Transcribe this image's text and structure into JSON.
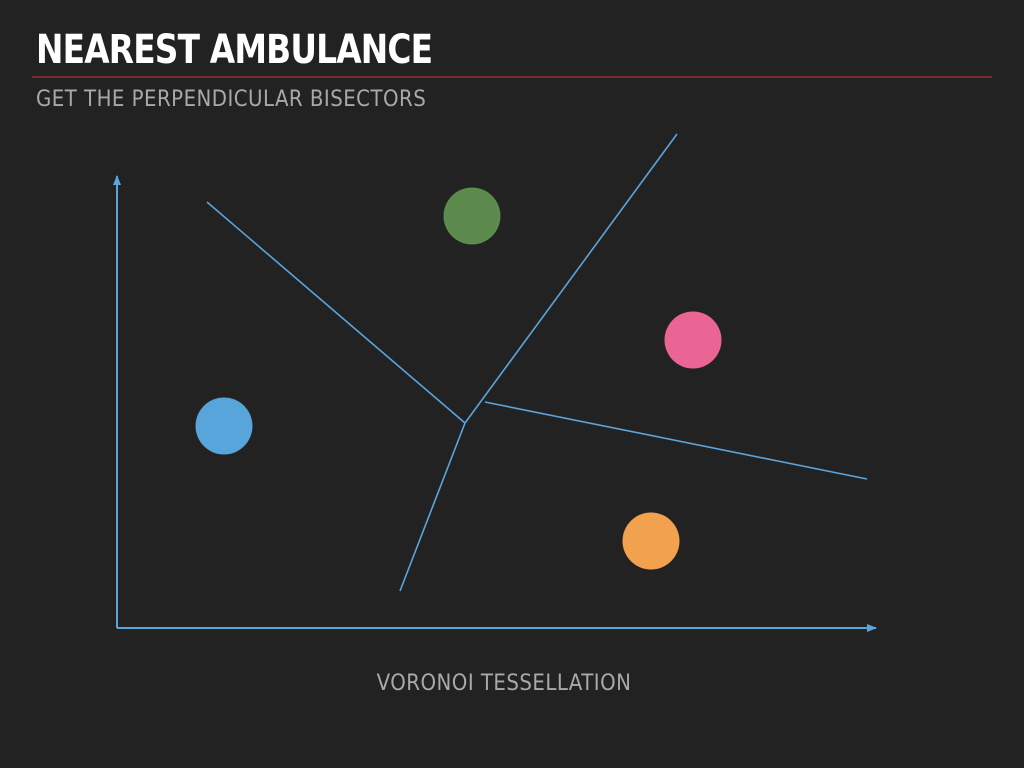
{
  "slide": {
    "title": "NEAREST AMBULANCE",
    "subtitle": "GET THE PERPENDICULAR BISECTORS",
    "caption": "VORONOI TESSELLATION"
  },
  "colors": {
    "background": "#222222",
    "axis": "#5aa5dc",
    "bisector": "#5aa5dc",
    "title_rule": "#7a2a2a",
    "point_blue": "#57a5db",
    "point_green": "#5c8a4c",
    "point_pink": "#eb6594",
    "point_orange": "#f2a24f"
  }
}
